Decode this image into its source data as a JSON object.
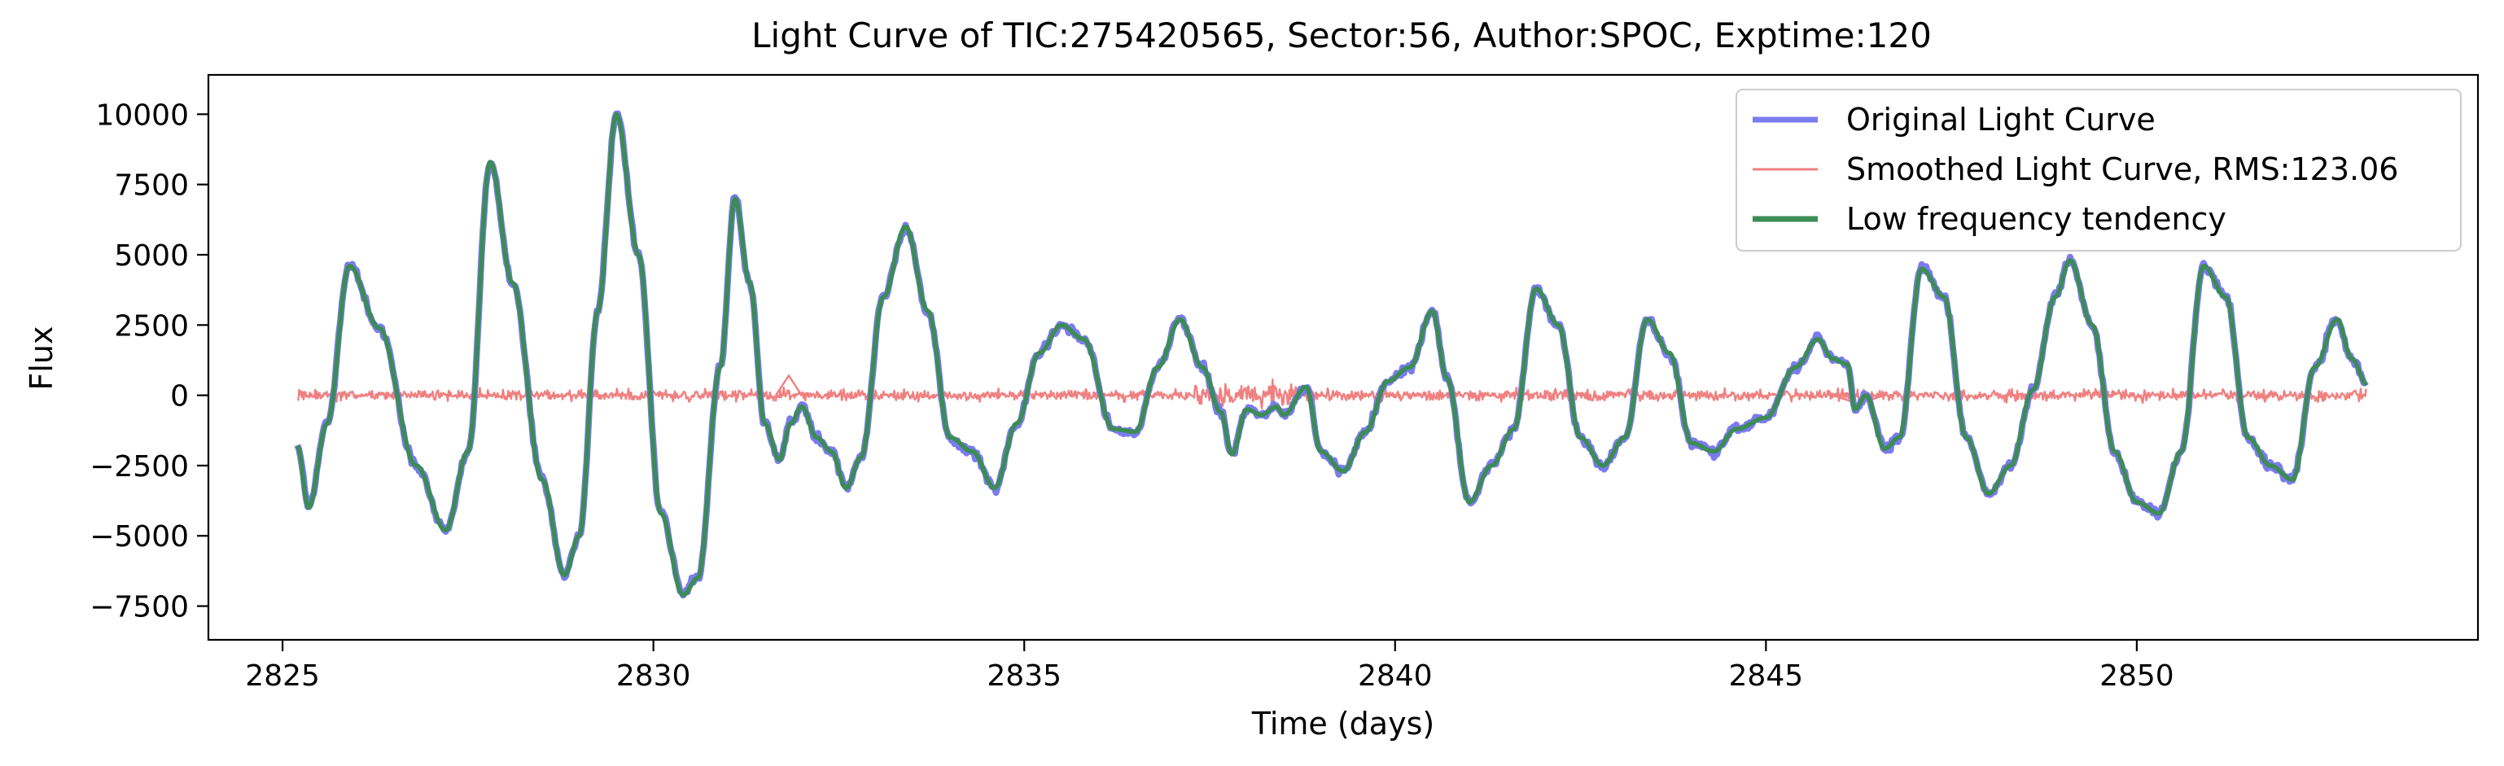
{
  "chart_data": {
    "type": "line",
    "title": "Light Curve of TIC:275420565, Sector:56, Author:SPOC, Exptime:120",
    "xlabel": "Time (days)",
    "ylabel": "Flux",
    "xlim": [
      2824.0,
      2854.6
    ],
    "ylim": [
      -8700,
      11400
    ],
    "xticks": [
      2825,
      2830,
      2835,
      2840,
      2845,
      2850
    ],
    "yticks": [
      -7500,
      -5000,
      -2500,
      0,
      2500,
      5000,
      7500,
      10000
    ],
    "xtick_labels": [
      "2825",
      "2830",
      "2835",
      "2840",
      "2845",
      "2850"
    ],
    "ytick_labels": [
      "−7500",
      "−5000",
      "−2500",
      "0",
      "2500",
      "5000",
      "7500",
      "10000"
    ],
    "grid": false,
    "legend_position": "top-right",
    "series": [
      {
        "name": "Original Light Curve",
        "color": "#7b7bf0"
      },
      {
        "name": "Smoothed Light Curve, RMS:123.06",
        "color": "#f08080"
      },
      {
        "name": "Low frequency tendency",
        "color": "#3c8c55"
      }
    ],
    "trend": {
      "x": [
        2825.2,
        2825.35,
        2825.6,
        2825.9,
        2826.3,
        2826.8,
        2827.2,
        2827.5,
        2827.8,
        2828.1,
        2828.5,
        2828.8,
        2829.0,
        2829.25,
        2829.5,
        2829.8,
        2830.1,
        2830.4,
        2830.6,
        2830.9,
        2831.1,
        2831.3,
        2831.5,
        2831.7,
        2831.85,
        2832.0,
        2832.2,
        2832.4,
        2832.6,
        2832.8,
        2833.1,
        2833.4,
        2833.7,
        2834.0,
        2834.3,
        2834.6,
        2834.9,
        2835.2,
        2835.5,
        2835.8,
        2836.2,
        2836.5,
        2836.8,
        2837.1,
        2837.4,
        2837.65,
        2837.8,
        2838.0,
        2838.2,
        2838.4,
        2838.5,
        2838.8,
        2839.0,
        2839.3,
        2839.6,
        2839.9,
        2840.2,
        2840.5,
        2840.7,
        2841.0,
        2841.3,
        2841.6,
        2841.9,
        2842.2,
        2842.5,
        2842.8,
        2843.1,
        2843.4,
        2843.7,
        2844.0,
        2844.3,
        2844.6,
        2845.0,
        2845.4,
        2845.7,
        2845.9,
        2846.1,
        2846.2,
        2846.35,
        2846.6,
        2846.8,
        2847.1,
        2847.4,
        2847.7,
        2848.0,
        2848.3,
        2848.6,
        2848.9,
        2849.1,
        2849.4,
        2849.7,
        2850.0,
        2850.3,
        2850.6,
        2850.9,
        2851.2,
        2851.5,
        2851.8,
        2852.1,
        2852.4,
        2852.7,
        2852.9,
        2853.1
      ],
      "y": [
        -1800,
        -4000,
        -1000,
        4600,
        2400,
        -2500,
        -4800,
        -2000,
        8300,
        4000,
        -3000,
        -6400,
        -5000,
        3000,
        10000,
        5000,
        -4200,
        -7100,
        -6500,
        1000,
        7000,
        4000,
        -1000,
        -2300,
        -1000,
        -400,
        -1500,
        -2000,
        -3300,
        -2200,
        3500,
        6000,
        3000,
        -1500,
        -2000,
        -3300,
        -1000,
        1500,
        2500,
        2000,
        -1200,
        -1300,
        1000,
        2700,
        1000,
        -600,
        -2100,
        -500,
        -700,
        -400,
        -700,
        300,
        -2000,
        -2700,
        -1300,
        500,
        1000,
        3000,
        600,
        -3800,
        -2500,
        -1200,
        3800,
        2500,
        -1500,
        -2500,
        -1500,
        2700,
        1500,
        -1700,
        -2000,
        -1200,
        -800,
        1000,
        2000,
        1300,
        1100,
        -500,
        0,
        -1900,
        -1500,
        4500,
        3500,
        -1500,
        -3500,
        -2500,
        200,
        3500,
        4800,
        2500,
        -2000,
        -3800,
        -4200,
        -2000,
        4600,
        3500,
        -1500,
        -2500,
        -3000,
        1000,
        2700,
        1300,
        400
      ]
    },
    "smoothed": {
      "segments": [
        [
          2825.2,
          2831.65
        ],
        [
          2831.65,
          2832.0
        ],
        [
          2832.0,
          2845.9
        ],
        [
          2845.9,
          2846.6
        ],
        [
          2846.6,
          2853.1
        ]
      ],
      "noise_level_rms": 123.06,
      "baseline": 0
    }
  }
}
